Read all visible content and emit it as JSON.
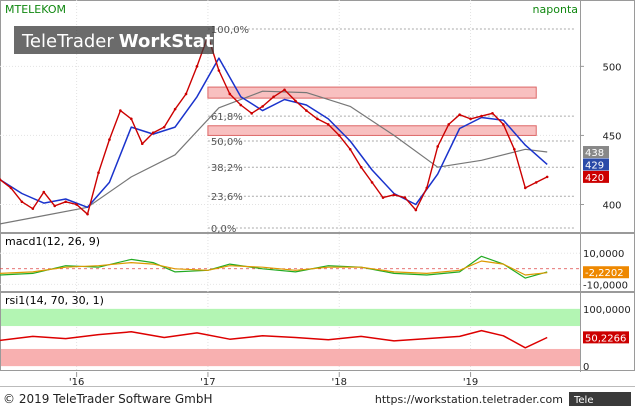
{
  "header": {
    "symbol": "MTELEKOM",
    "interval": "naponta",
    "watermark_brand": "TeleTrader",
    "watermark_product": "WorkStation"
  },
  "footer": {
    "copyright": "© 2019 TeleTrader Software GmbH",
    "url": "https://workstation.teletrader.com",
    "logo_text": "Tele"
  },
  "colors": {
    "price": "#cc0000",
    "sma_fast": "#1a33cc",
    "sma_slow": "#777777",
    "macd_line": "#22aa22",
    "macd_signal": "#dd9900",
    "rsi": "#dd0000",
    "rsi_overbought_band": "#b3f5b3",
    "rsi_oversold_band": "#f8b0b0",
    "zone_fill": "#f8c0c0",
    "zone_border": "#dd6666",
    "badge_upper": "#888888",
    "badge_mid": "#2a4aa8",
    "badge_low": "#cc0000",
    "badge_macd": "#ee8800",
    "badge_rsi": "#cc0000",
    "watermark_bg": "#3a3a3a"
  },
  "chart_data": [
    {
      "type": "line",
      "panel": "price",
      "y_axis": {
        "ticks": [
          400,
          450,
          500
        ],
        "ylim": [
          383,
          535
        ]
      },
      "x_axis": {
        "ticks": [
          "'16",
          "'17",
          "'18",
          "'19"
        ],
        "range": [
          "2015-06",
          "2019-11"
        ]
      },
      "grid": true,
      "legend": "none",
      "series": [
        {
          "key": "price",
          "points": [
            [
              "2015-06",
              418
            ],
            [
              "2015-07",
              412
            ],
            [
              "2015-08",
              402
            ],
            [
              "2015-09",
              397
            ],
            [
              "2015-10",
              409
            ],
            [
              "2015-11",
              399
            ],
            [
              "2015-12",
              402
            ],
            [
              "2016-01",
              400
            ],
            [
              "2016-02",
              393
            ],
            [
              "2016-03",
              423
            ],
            [
              "2016-04",
              447
            ],
            [
              "2016-05",
              468
            ],
            [
              "2016-06",
              462
            ],
            [
              "2016-07",
              444
            ],
            [
              "2016-08",
              452
            ],
            [
              "2016-09",
              456
            ],
            [
              "2016-10",
              469
            ],
            [
              "2016-11",
              480
            ],
            [
              "2016-12",
              500
            ],
            [
              "2017-01",
              522
            ],
            [
              "2017-02",
              497
            ],
            [
              "2017-03",
              480
            ],
            [
              "2017-04",
              472
            ],
            [
              "2017-05",
              466
            ],
            [
              "2017-06",
              471
            ],
            [
              "2017-07",
              478
            ],
            [
              "2017-08",
              483
            ],
            [
              "2017-09",
              475
            ],
            [
              "2017-10",
              468
            ],
            [
              "2017-11",
              462
            ],
            [
              "2017-12",
              458
            ],
            [
              "2018-01",
              450
            ],
            [
              "2018-02",
              440
            ],
            [
              "2018-03",
              427
            ],
            [
              "2018-04",
              416
            ],
            [
              "2018-05",
              405
            ],
            [
              "2018-06",
              407
            ],
            [
              "2018-07",
              405
            ],
            [
              "2018-08",
              396
            ],
            [
              "2018-09",
              412
            ],
            [
              "2018-10",
              442
            ],
            [
              "2018-11",
              458
            ],
            [
              "2018-12",
              465
            ],
            [
              "2019-01",
              462
            ],
            [
              "2019-02",
              464
            ],
            [
              "2019-03",
              466
            ],
            [
              "2019-04",
              458
            ],
            [
              "2019-05",
              440
            ],
            [
              "2019-06",
              412
            ],
            [
              "2019-07",
              416
            ],
            [
              "2019-08",
              420
            ]
          ]
        },
        {
          "key": "sma_fast",
          "points": [
            [
              "2015-06",
              418
            ],
            [
              "2015-08",
              408
            ],
            [
              "2015-10",
              401
            ],
            [
              "2015-12",
              404
            ],
            [
              "2016-02",
              398
            ],
            [
              "2016-04",
              416
            ],
            [
              "2016-06",
              456
            ],
            [
              "2016-08",
              451
            ],
            [
              "2016-10",
              456
            ],
            [
              "2016-12",
              478
            ],
            [
              "2017-02",
              506
            ],
            [
              "2017-04",
              478
            ],
            [
              "2017-06",
              468
            ],
            [
              "2017-08",
              476
            ],
            [
              "2017-10",
              472
            ],
            [
              "2017-12",
              462
            ],
            [
              "2018-02",
              446
            ],
            [
              "2018-04",
              425
            ],
            [
              "2018-06",
              408
            ],
            [
              "2018-08",
              400
            ],
            [
              "2018-10",
              422
            ],
            [
              "2018-12",
              455
            ],
            [
              "2019-02",
              463
            ],
            [
              "2019-04",
              461
            ],
            [
              "2019-06",
              443
            ],
            [
              "2019-08",
              429
            ]
          ]
        },
        {
          "key": "sma_slow",
          "points": [
            [
              "2015-06",
              386
            ],
            [
              "2015-10",
              392
            ],
            [
              "2016-02",
              398
            ],
            [
              "2016-06",
              420
            ],
            [
              "2016-10",
              436
            ],
            [
              "2017-02",
              470
            ],
            [
              "2017-06",
              482
            ],
            [
              "2017-10",
              481
            ],
            [
              "2018-02",
              471
            ],
            [
              "2018-06",
              450
            ],
            [
              "2018-10",
              427
            ],
            [
              "2019-02",
              432
            ],
            [
              "2019-06",
              440
            ],
            [
              "2019-08",
              438
            ]
          ]
        }
      ],
      "fibonacci": [
        {
          "label": "100,0%",
          "value": 527
        },
        {
          "label": "61,8%",
          "value": 464
        },
        {
          "label": "50,0%",
          "value": 446
        },
        {
          "label": "38,2%",
          "value": 427
        },
        {
          "label": "23,6%",
          "value": 406
        },
        {
          "label": "0,0%",
          "value": 383
        }
      ],
      "zones": [
        {
          "from": "2017-01",
          "to": "2019-07",
          "low": 477,
          "high": 485
        },
        {
          "from": "2017-01",
          "to": "2019-07",
          "low": 450,
          "high": 457
        }
      ],
      "last_values": [
        {
          "label": "438",
          "value": 438,
          "key": "badge_upper"
        },
        {
          "label": "429",
          "value": 429,
          "key": "badge_mid"
        },
        {
          "label": "420",
          "value": 420,
          "key": "badge_low"
        }
      ]
    },
    {
      "type": "line",
      "panel": "macd",
      "title": "macd1(12, 26, 9)",
      "y_axis": {
        "ticks": [
          "10,0000",
          "-10,0000"
        ],
        "tick_values": [
          10,
          -10
        ],
        "ylim": [
          -13,
          14
        ]
      },
      "series": [
        {
          "key": "macd_line",
          "points": [
            [
              "2015-06",
              -4
            ],
            [
              "2015-09",
              -3
            ],
            [
              "2015-12",
              2
            ],
            [
              "2016-03",
              1
            ],
            [
              "2016-06",
              6
            ],
            [
              "2016-08",
              4
            ],
            [
              "2016-10",
              -2
            ],
            [
              "2017-01",
              -1
            ],
            [
              "2017-03",
              3
            ],
            [
              "2017-06",
              0
            ],
            [
              "2017-09",
              -2
            ],
            [
              "2017-12",
              2
            ],
            [
              "2018-03",
              1
            ],
            [
              "2018-06",
              -3
            ],
            [
              "2018-09",
              -4
            ],
            [
              "2018-12",
              -2
            ],
            [
              "2019-02",
              8
            ],
            [
              "2019-04",
              3
            ],
            [
              "2019-06",
              -6
            ],
            [
              "2019-08",
              -2
            ]
          ]
        },
        {
          "key": "macd_signal",
          "points": [
            [
              "2015-06",
              -3
            ],
            [
              "2015-09",
              -2
            ],
            [
              "2015-12",
              1
            ],
            [
              "2016-03",
              2
            ],
            [
              "2016-06",
              4
            ],
            [
              "2016-08",
              3
            ],
            [
              "2016-10",
              0
            ],
            [
              "2017-01",
              -1
            ],
            [
              "2017-03",
              2
            ],
            [
              "2017-06",
              1
            ],
            [
              "2017-09",
              -1
            ],
            [
              "2017-12",
              1
            ],
            [
              "2018-03",
              1
            ],
            [
              "2018-06",
              -2
            ],
            [
              "2018-09",
              -3
            ],
            [
              "2018-12",
              -1
            ],
            [
              "2019-02",
              5
            ],
            [
              "2019-04",
              3
            ],
            [
              "2019-06",
              -4
            ],
            [
              "2019-08",
              -2.5
            ]
          ]
        }
      ],
      "last_values": [
        {
          "label": "-2,2202",
          "value": -2.2202,
          "key": "badge_macd"
        }
      ]
    },
    {
      "type": "line",
      "panel": "rsi",
      "title": "rsi1(14, 70, 30, 1)",
      "y_axis": {
        "ticks": [
          "100,0000",
          "0"
        ],
        "tick_values": [
          100,
          0
        ],
        "ylim": [
          -5,
          105
        ]
      },
      "bands": {
        "overbought": [
          70,
          100
        ],
        "oversold": [
          0,
          30
        ]
      },
      "series": [
        {
          "key": "rsi",
          "points": [
            [
              "2015-06",
              45
            ],
            [
              "2015-09",
              52
            ],
            [
              "2015-12",
              48
            ],
            [
              "2016-03",
              55
            ],
            [
              "2016-06",
              60
            ],
            [
              "2016-09",
              50
            ],
            [
              "2016-12",
              58
            ],
            [
              "2017-03",
              47
            ],
            [
              "2017-06",
              53
            ],
            [
              "2017-09",
              50
            ],
            [
              "2017-12",
              46
            ],
            [
              "2018-03",
              52
            ],
            [
              "2018-06",
              44
            ],
            [
              "2018-09",
              48
            ],
            [
              "2018-12",
              52
            ],
            [
              "2019-02",
              62
            ],
            [
              "2019-04",
              53
            ],
            [
              "2019-06",
              32
            ],
            [
              "2019-08",
              50
            ]
          ]
        }
      ],
      "last_values": [
        {
          "label": "50,2266",
          "value": 50.2266,
          "key": "badge_rsi"
        }
      ]
    }
  ]
}
